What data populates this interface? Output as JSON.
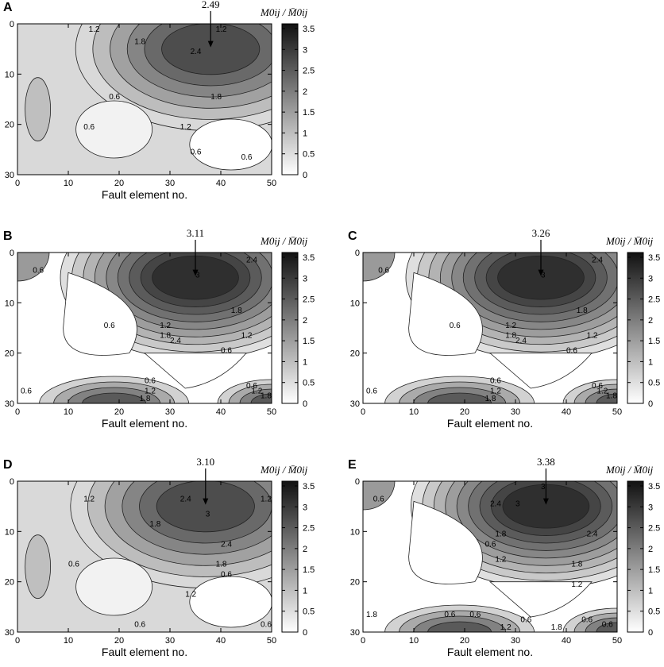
{
  "chart_data": [
    {
      "type": "contour",
      "panel_label": "A",
      "xlabel": "Fault element no.",
      "colorbar_label": "M0ij / M̄0ij",
      "xticks": [
        "0",
        "10",
        "20",
        "30",
        "40",
        "50"
      ],
      "yticks": [
        "0",
        "10",
        "20",
        "30"
      ],
      "xlim": [
        0,
        50
      ],
      "ylim": [
        0,
        30
      ],
      "colorbar_ticks": [
        "0",
        "0.5",
        "1",
        "1.5",
        "2",
        "2.5",
        "3",
        "3.5"
      ],
      "peak_label": "2.49",
      "peak": {
        "x": 38,
        "y": 5,
        "value": 2.49
      },
      "contour_labels": [
        "1.2",
        "1.8",
        "2.4",
        "1.8",
        "1.2",
        "1.2",
        "0.6",
        "0.6",
        "0.6",
        "0.6"
      ]
    },
    {
      "type": "contour",
      "panel_label": "B",
      "xlabel": "Fault element no.",
      "colorbar_label": "M0ij / M̄0ij",
      "xticks": [
        "0",
        "10",
        "20",
        "30",
        "40",
        "50"
      ],
      "yticks": [
        "0",
        "10",
        "20",
        "30"
      ],
      "xlim": [
        0,
        50
      ],
      "ylim": [
        0,
        30
      ],
      "colorbar_ticks": [
        "0",
        "0.5",
        "1",
        "1.5",
        "2",
        "2.5",
        "3",
        "3.5"
      ],
      "peak_label": "3.11",
      "peak": {
        "x": 35,
        "y": 5,
        "value": 3.11
      },
      "contour_labels": [
        "0.6",
        "0.6",
        "1.2",
        "1.8",
        "2.4",
        "3",
        "2.4",
        "1.8",
        "1.2",
        "0.6",
        "0.6",
        "1.2",
        "1.8",
        "0.6",
        "1.2",
        "1.8",
        "0.6"
      ]
    },
    {
      "type": "contour",
      "panel_label": "C",
      "xlabel": "Fault element no.",
      "colorbar_label": "M0ij / M̄0ij",
      "xticks": [
        "0",
        "10",
        "20",
        "30",
        "40",
        "50"
      ],
      "yticks": [
        "0",
        "10",
        "20",
        "30"
      ],
      "xlim": [
        0,
        50
      ],
      "ylim": [
        0,
        30
      ],
      "colorbar_ticks": [
        "0",
        "0.5",
        "1",
        "1.5",
        "2",
        "2.5",
        "3",
        "3.5"
      ],
      "peak_label": "3.26",
      "peak": {
        "x": 35,
        "y": 5,
        "value": 3.26
      },
      "contour_labels": [
        "0.6",
        "0.6",
        "1.2",
        "1.8",
        "2.4",
        "3",
        "2.4",
        "1.8",
        "1.2",
        "0.6",
        "0.6",
        "1.2",
        "1.8",
        "0.6",
        "1.2",
        "1.8",
        "0.6"
      ]
    },
    {
      "type": "contour",
      "panel_label": "D",
      "xlabel": "Fault element no.",
      "colorbar_label": "M0ij / M̄0ij",
      "xticks": [
        "0",
        "10",
        "20",
        "30",
        "40",
        "50"
      ],
      "yticks": [
        "0",
        "10",
        "20",
        "30"
      ],
      "xlim": [
        0,
        50
      ],
      "ylim": [
        0,
        30
      ],
      "colorbar_ticks": [
        "0",
        "0.5",
        "1",
        "1.5",
        "2",
        "2.5",
        "3",
        "3.5"
      ],
      "peak_label": "3.10",
      "peak": {
        "x": 37,
        "y": 5,
        "value": 3.1
      },
      "contour_labels": [
        "1.2",
        "1.8",
        "2.4",
        "3",
        "2.4",
        "1.8",
        "1.2",
        "1.2",
        "0.6",
        "0.6",
        "0.6",
        "0.6"
      ]
    },
    {
      "type": "contour",
      "panel_label": "E",
      "xlabel": "Fault element no.",
      "colorbar_label": "M0ij / M̄0ij",
      "xticks": [
        "0",
        "10",
        "20",
        "30",
        "40",
        "50"
      ],
      "yticks": [
        "0",
        "10",
        "20",
        "30"
      ],
      "xlim": [
        0,
        50
      ],
      "ylim": [
        0,
        30
      ],
      "colorbar_ticks": [
        "0",
        "0.5",
        "1",
        "1.5",
        "2",
        "2.5",
        "3",
        "3.5"
      ],
      "peak_label": "3.38",
      "peak": {
        "x": 36,
        "y": 5,
        "value": 3.38
      },
      "contour_labels": [
        "0.6",
        "0.6",
        "0.6",
        "1.2",
        "1.8",
        "2.4",
        "3",
        "3",
        "2.4",
        "1.8",
        "1.2",
        "0.6",
        "0.6",
        "1.2",
        "1.8",
        "0.6",
        "0.6",
        "1.8"
      ]
    }
  ]
}
